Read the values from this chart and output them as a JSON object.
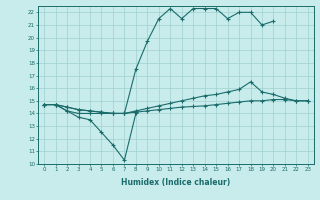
{
  "title": "",
  "xlabel": "Humidex (Indice chaleur)",
  "bg_color": "#c8ecec",
  "line_color": "#1a6b6b",
  "grid_color": "#a0d0d0",
  "xlim": [
    -0.5,
    23.5
  ],
  "ylim": [
    10,
    22.5
  ],
  "xticks": [
    0,
    1,
    2,
    3,
    4,
    5,
    6,
    7,
    8,
    9,
    10,
    11,
    12,
    13,
    14,
    15,
    16,
    17,
    18,
    19,
    20,
    21,
    22,
    23
  ],
  "yticks": [
    10,
    11,
    12,
    13,
    14,
    15,
    16,
    17,
    18,
    19,
    20,
    21,
    22
  ],
  "series": [
    {
      "x": [
        0,
        1,
        2,
        3,
        4,
        5,
        6,
        7,
        8
      ],
      "y": [
        14.7,
        14.7,
        14.2,
        13.7,
        13.5,
        12.5,
        11.5,
        10.3,
        14.0
      ]
    },
    {
      "x": [
        0,
        1,
        2,
        3,
        4,
        5,
        6,
        7,
        8,
        9,
        10,
        11,
        12,
        13,
        14,
        15,
        16,
        17,
        18,
        19,
        20
      ],
      "y": [
        14.7,
        14.7,
        14.2,
        14.0,
        14.0,
        14.0,
        14.0,
        14.0,
        17.5,
        19.7,
        21.5,
        22.3,
        21.5,
        22.3,
        22.3,
        22.3,
        21.5,
        22.0,
        22.0,
        21.0,
        21.3
      ]
    },
    {
      "x": [
        0,
        1,
        2,
        3,
        4,
        5,
        6,
        7,
        8,
        9,
        10,
        11,
        12,
        13,
        14,
        15,
        16,
        17,
        18,
        19,
        20,
        21,
        22,
        23
      ],
      "y": [
        14.7,
        14.7,
        14.5,
        14.3,
        14.2,
        14.1,
        14.0,
        14.0,
        14.1,
        14.2,
        14.3,
        14.4,
        14.5,
        14.55,
        14.6,
        14.7,
        14.8,
        14.9,
        15.0,
        15.0,
        15.1,
        15.1,
        15.0,
        15.0
      ]
    },
    {
      "x": [
        0,
        1,
        2,
        3,
        4,
        5,
        6,
        7,
        8,
        9,
        10,
        11,
        12,
        13,
        14,
        15,
        16,
        17,
        18,
        19,
        20,
        21,
        22,
        23
      ],
      "y": [
        14.7,
        14.7,
        14.5,
        14.3,
        14.2,
        14.1,
        14.0,
        14.0,
        14.2,
        14.4,
        14.6,
        14.8,
        15.0,
        15.2,
        15.4,
        15.5,
        15.7,
        15.9,
        16.5,
        15.7,
        15.5,
        15.2,
        15.0,
        15.0
      ]
    }
  ]
}
